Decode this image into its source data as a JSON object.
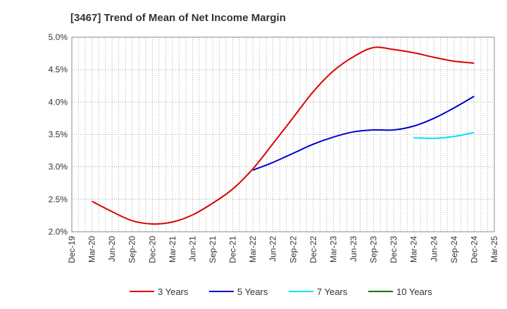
{
  "chart_data": {
    "type": "line",
    "title": "[3467]  Trend of Mean of Net Income Margin",
    "xlabel": "",
    "ylabel": "",
    "x_ticks": [
      "Dec-19",
      "Mar-20",
      "Jun-20",
      "Sep-20",
      "Dec-20",
      "Mar-21",
      "Jun-21",
      "Sep-21",
      "Dec-21",
      "Mar-22",
      "Jun-22",
      "Sep-22",
      "Dec-22",
      "Mar-23",
      "Jun-23",
      "Sep-23",
      "Dec-23",
      "Mar-24",
      "Jun-24",
      "Sep-24",
      "Dec-24",
      "Mar-25"
    ],
    "y_ticks": [
      "2.0%",
      "2.5%",
      "3.0%",
      "3.5%",
      "4.0%",
      "4.5%",
      "5.0%"
    ],
    "ylim": [
      2.0,
      5.0
    ],
    "grid": true,
    "legend_position": "bottom",
    "series": [
      {
        "name": "3 Years",
        "color": "#dd0000",
        "x": [
          "Mar-20",
          "Jun-20",
          "Sep-20",
          "Dec-20",
          "Mar-21",
          "Jun-21",
          "Sep-21",
          "Dec-21",
          "Mar-22",
          "Jun-22",
          "Sep-22",
          "Dec-22",
          "Mar-23",
          "Jun-23",
          "Sep-23",
          "Dec-23",
          "Mar-24",
          "Jun-24",
          "Sep-24",
          "Dec-24"
        ],
        "values": [
          2.47,
          2.31,
          2.17,
          2.12,
          2.15,
          2.26,
          2.44,
          2.66,
          2.97,
          3.36,
          3.76,
          4.16,
          4.48,
          4.7,
          4.84,
          4.81,
          4.76,
          4.69,
          4.63,
          4.6
        ]
      },
      {
        "name": "5 Years",
        "color": "#0000cc",
        "x": [
          "Mar-22",
          "Jun-22",
          "Sep-22",
          "Dec-22",
          "Mar-23",
          "Jun-23",
          "Sep-23",
          "Dec-23",
          "Mar-24",
          "Jun-24",
          "Sep-24",
          "Dec-24"
        ],
        "values": [
          2.95,
          3.07,
          3.21,
          3.35,
          3.46,
          3.54,
          3.57,
          3.57,
          3.63,
          3.75,
          3.91,
          4.09
        ]
      },
      {
        "name": "7 Years",
        "color": "#00e5ee",
        "x": [
          "Mar-24",
          "Jun-24",
          "Sep-24",
          "Dec-24"
        ],
        "values": [
          3.45,
          3.44,
          3.47,
          3.53
        ]
      },
      {
        "name": "10 Years",
        "color": "#007700",
        "x": [],
        "values": []
      }
    ]
  }
}
